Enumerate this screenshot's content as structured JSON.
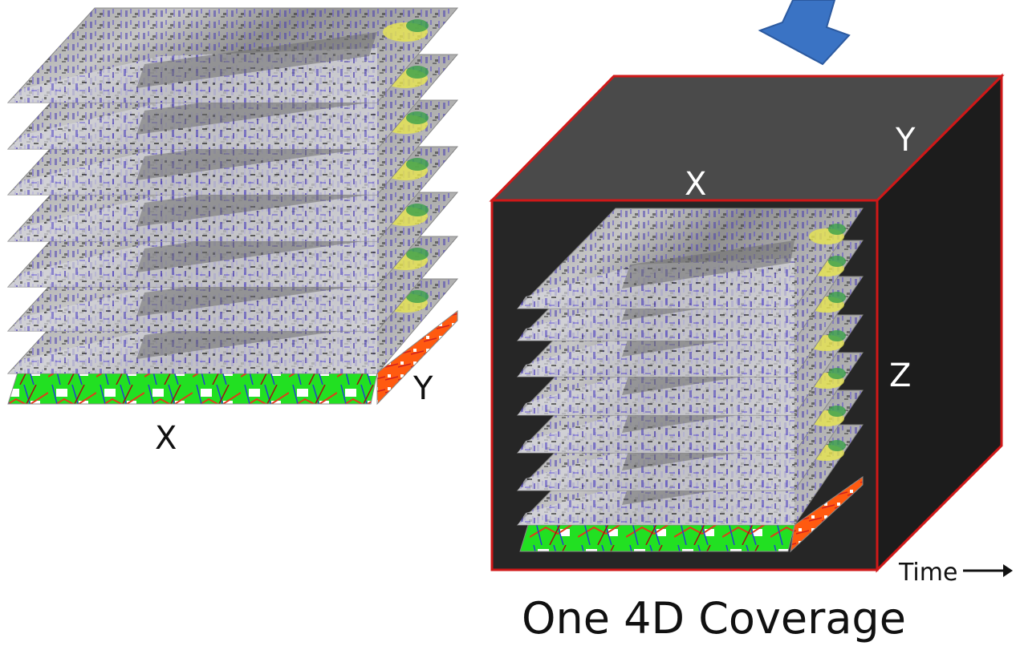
{
  "stack": {
    "x_label": "X",
    "y_label": "Y",
    "layer_count": 7,
    "base_layer": "land-cover map"
  },
  "cube": {
    "x_label": "X",
    "y_label": "Y",
    "z_label": "Z",
    "time_label": "Time",
    "layer_count": 7,
    "edge_color": "#d01818",
    "top_face_color": "#4a4a4a",
    "front_face_color": "#262626",
    "side_face_color": "#1c1c1c"
  },
  "arrow": {
    "icon": "down-arrow-icon",
    "color": "#3a73c4"
  },
  "caption": "One 4D Coverage",
  "colors": {
    "layer_gray": "#a8a8a8",
    "noise_blue": "#4a3fb0",
    "noise_yellow": "#e8e650",
    "noise_green": "#3aa04a",
    "map_green": "#22e022",
    "map_red": "#e03a1a",
    "map_orange": "#ff6a1a"
  }
}
